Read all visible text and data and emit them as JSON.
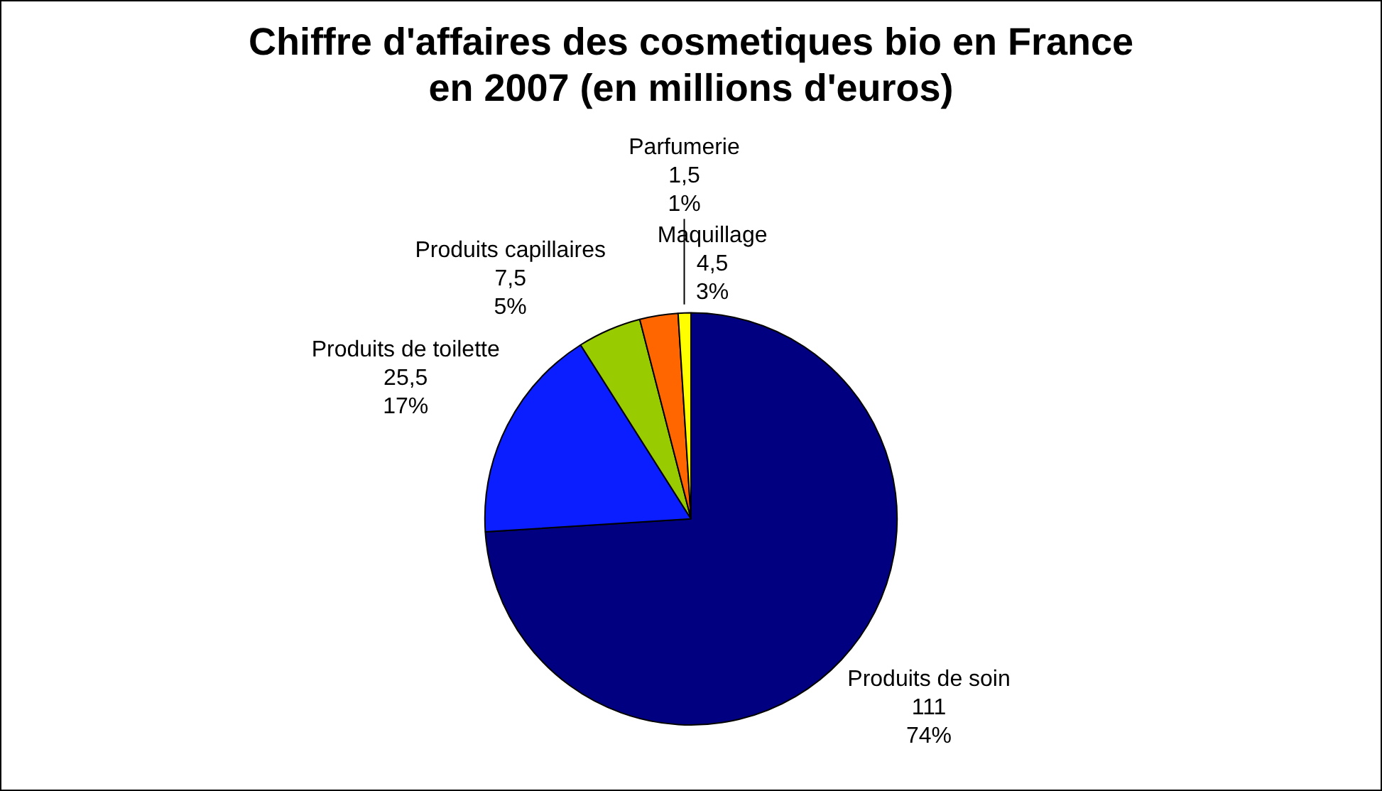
{
  "chart_data": {
    "type": "pie",
    "title": "Chiffre d'affaires des cosmetiques bio en France en 2007 (en millions d'euros)",
    "categories": [
      "Produits de soin",
      "Produits de toilette",
      "Produits capillaires",
      "Maquillage",
      "Parfumerie"
    ],
    "values": [
      111,
      25.5,
      7.5,
      4.5,
      1.5
    ],
    "colors": [
      "#000080",
      "#0a1eff",
      "#99cc00",
      "#ff6600",
      "#ffff00"
    ],
    "value_labels": [
      "111\n74%",
      "25,5\n17%",
      "7,5\n5%",
      "4,5\n3%",
      "1,5\n1%"
    ],
    "legend": false
  }
}
